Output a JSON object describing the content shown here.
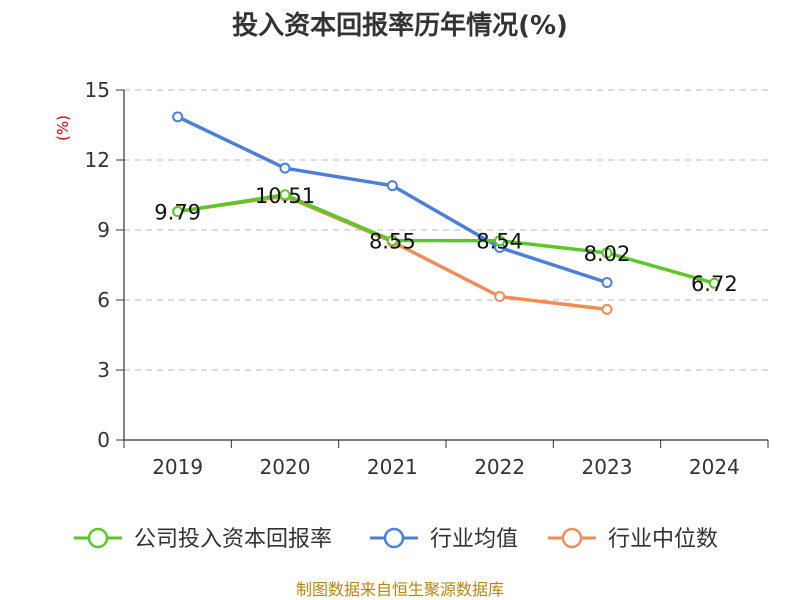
{
  "chart_data": {
    "type": "line",
    "title": "投入资本回报率历年情况(%)",
    "ylabel": "(%)",
    "xlabel": "",
    "categories": [
      "2019",
      "2020",
      "2021",
      "2022",
      "2023",
      "2024"
    ],
    "ylim": [
      0,
      15
    ],
    "yticks": [
      0,
      3,
      6,
      9,
      12,
      15
    ],
    "grid": "horizontal-dashed",
    "legend_position": "bottom",
    "series": [
      {
        "name": "公司投入资本回报率",
        "color": "#5cc72a",
        "values": [
          9.79,
          10.51,
          8.55,
          8.54,
          8.02,
          6.72
        ],
        "labels": [
          "9.79",
          "10.51",
          "8.55",
          "8.54",
          "8.02",
          "6.72"
        ]
      },
      {
        "name": "行业均值",
        "color": "#4a7fdc",
        "values": [
          13.85,
          11.65,
          10.9,
          8.25,
          6.75,
          null
        ]
      },
      {
        "name": "行业中位数",
        "color": "#f28b58",
        "values": [
          9.8,
          10.45,
          8.5,
          6.15,
          5.6,
          null
        ]
      }
    ],
    "source": "制图数据来自恒生聚源数据库"
  }
}
